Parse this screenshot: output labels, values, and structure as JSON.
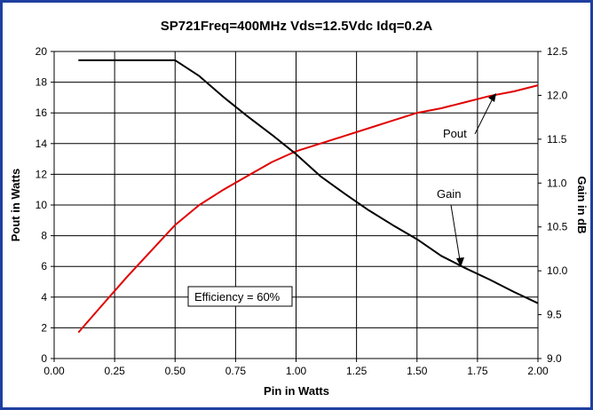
{
  "chart_data": {
    "type": "line",
    "title": "SP721Freq=400MHz Vds=12.5Vdc Idq=0.2A",
    "xlabel": "Pin in Watts",
    "ylabel": "Pout in Watts",
    "y2label": "Gain in dB",
    "xlim": [
      0,
      2
    ],
    "ylim": [
      0,
      20
    ],
    "y2lim": [
      9.0,
      12.5
    ],
    "x_ticks": [
      "0.00",
      "0.25",
      "0.50",
      "0.75",
      "1.00",
      "1.25",
      "1.50",
      "1.75",
      "2.00"
    ],
    "y_ticks": [
      "0",
      "2",
      "4",
      "6",
      "8",
      "10",
      "12",
      "14",
      "16",
      "18",
      "20"
    ],
    "y2_ticks": [
      "9.0",
      "9.5",
      "10.0",
      "10.5",
      "11.0",
      "11.5",
      "12.0",
      "12.5"
    ],
    "grid": true,
    "series": [
      {
        "name": "Pout",
        "axis": "left",
        "color": "#e00000",
        "x": [
          0.1,
          0.2,
          0.3,
          0.4,
          0.5,
          0.6,
          0.7,
          0.8,
          0.9,
          1.0,
          1.1,
          1.2,
          1.3,
          1.4,
          1.5,
          1.6,
          1.7,
          1.8,
          1.9,
          2.0
        ],
        "values": [
          1.7,
          3.5,
          5.3,
          7.0,
          8.7,
          10.0,
          11.0,
          11.9,
          12.8,
          13.5,
          14.0,
          14.5,
          15.0,
          15.5,
          16.0,
          16.3,
          16.7,
          17.1,
          17.4,
          17.8
        ]
      },
      {
        "name": "Gain",
        "axis": "right",
        "color": "#000000",
        "x": [
          0.1,
          0.2,
          0.3,
          0.4,
          0.5,
          0.6,
          0.7,
          0.8,
          0.9,
          1.0,
          1.1,
          1.2,
          1.3,
          1.4,
          1.5,
          1.6,
          1.7,
          1.8,
          1.9,
          2.0
        ],
        "values": [
          12.4,
          12.4,
          12.4,
          12.4,
          12.4,
          12.22,
          11.98,
          11.76,
          11.55,
          11.33,
          11.08,
          10.88,
          10.69,
          10.52,
          10.36,
          10.17,
          10.03,
          9.9,
          9.76,
          9.63
        ]
      }
    ],
    "annotations": {
      "pout_label": "Pout",
      "gain_label": "Gain",
      "efficiency_label": "Efficiency = 60%"
    }
  }
}
